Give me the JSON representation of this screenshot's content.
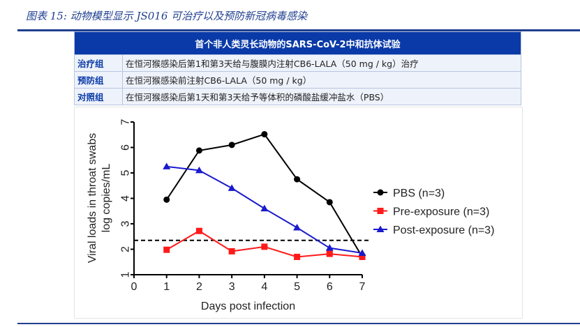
{
  "figure_title": "图表 15:  动物模型显示 JS016 可治疗以及预防新冠病毒感染",
  "table": {
    "header": "首个非人类灵长动物的SARS-CoV-2中和抗体试验",
    "rows": [
      {
        "label": "治疗组",
        "text": "在恒河猴感染后第1和第3天给与腹膜内注射CB6-LALA（50 mg / kg）治疗"
      },
      {
        "label": "预防组",
        "text": "在恒河猴感染前注射CB6-LALA（50 mg / kg）"
      },
      {
        "label": "对照组",
        "text": "在恒河猴感染后第1天和第3天给予等体积的磷酸盐缓冲盐水（PBS）"
      }
    ]
  },
  "chart_data": {
    "type": "line",
    "title": "",
    "xlabel": "Days post infection",
    "ylabel": "Viral loads in throat swabs",
    "ylabel2": "log copies/mL",
    "xlim": [
      0,
      7
    ],
    "ylim": [
      1,
      7
    ],
    "xticks": [
      "0",
      "1",
      "2",
      "3",
      "4",
      "5",
      "6",
      "7"
    ],
    "yticks": [
      "1",
      "2",
      "3",
      "4",
      "5",
      "6",
      "7"
    ],
    "x": [
      1,
      2,
      3,
      4,
      5,
      6,
      7
    ],
    "threshold": 2.35,
    "legend_position": "right",
    "series": [
      {
        "name": "PBS (n=3)",
        "color": "#000000",
        "marker": "circle",
        "values": [
          3.95,
          5.88,
          6.1,
          6.52,
          4.75,
          3.85,
          1.7
        ]
      },
      {
        "name": "Pre-exposure (n=3)",
        "color": "#ff1a1a",
        "marker": "square",
        "values": [
          1.98,
          2.72,
          1.92,
          2.1,
          1.7,
          1.82,
          1.7
        ]
      },
      {
        "name": "Post-exposure (n=3)",
        "color": "#1a1acc",
        "marker": "triangle",
        "values": [
          5.25,
          5.1,
          4.4,
          3.6,
          2.85,
          2.05,
          1.85
        ]
      }
    ]
  }
}
